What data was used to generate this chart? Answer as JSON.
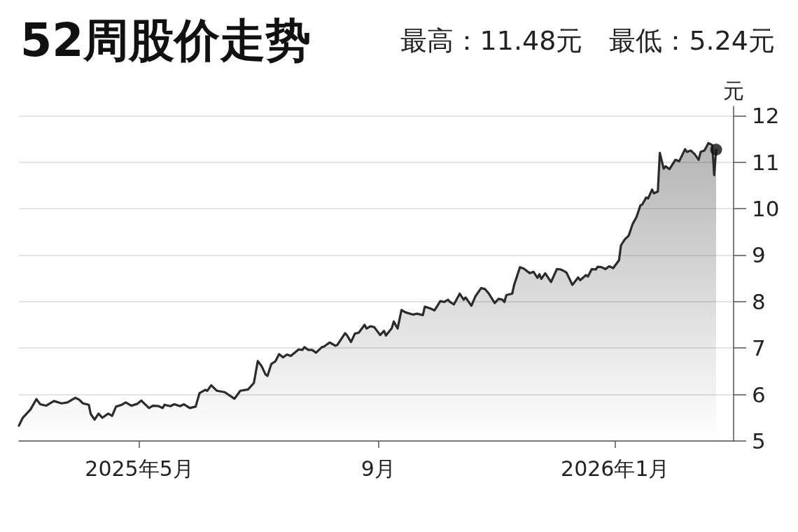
{
  "chart_data": {
    "type": "area",
    "title": "52周股价走势",
    "subtitle": "最高：11.48元　最低：5.24元",
    "ylabel": "元",
    "x": [
      "2025-02-28",
      "2025-03-02",
      "2025-03-06",
      "2025-03-09",
      "2025-03-11",
      "2025-03-14",
      "2025-03-18",
      "2025-03-22",
      "2025-03-25",
      "2025-03-29",
      "2025-03-31",
      "2025-04-02",
      "2025-04-05",
      "2025-04-06",
      "2025-04-08",
      "2025-04-10",
      "2025-04-12",
      "2025-04-15",
      "2025-04-17",
      "2025-04-19",
      "2025-04-22",
      "2025-04-24",
      "2025-04-27",
      "2025-04-30",
      "2025-05-02",
      "2025-05-04",
      "2025-05-06",
      "2025-05-08",
      "2025-05-11",
      "2025-05-13",
      "2025-05-14",
      "2025-05-17",
      "2025-05-19",
      "2025-05-22",
      "2025-05-24",
      "2025-05-27",
      "2025-05-30",
      "2025-06-01",
      "2025-06-04",
      "2025-06-05",
      "2025-06-07",
      "2025-06-10",
      "2025-06-14",
      "2025-06-19",
      "2025-06-22",
      "2025-06-26",
      "2025-06-29",
      "2025-07-01",
      "2025-07-03",
      "2025-07-05",
      "2025-07-06",
      "2025-07-08",
      "2025-07-10",
      "2025-07-12",
      "2025-07-14",
      "2025-07-16",
      "2025-07-18",
      "2025-07-22",
      "2025-07-24",
      "2025-07-25",
      "2025-07-27",
      "2025-07-29",
      "2025-07-31",
      "2025-08-03",
      "2025-08-04",
      "2025-08-07",
      "2025-08-10",
      "2025-08-11",
      "2025-08-15",
      "2025-08-16",
      "2025-08-18",
      "2025-08-20",
      "2025-08-22",
      "2025-08-25",
      "2025-08-26",
      "2025-08-28",
      "2025-08-30",
      "2025-09-02",
      "2025-09-04",
      "2025-09-05",
      "2025-09-08",
      "2025-09-09",
      "2025-09-11",
      "2025-09-13",
      "2025-09-15",
      "2025-09-19",
      "2025-09-21",
      "2025-09-24",
      "2025-09-25",
      "2025-09-28",
      "2025-09-30",
      "2025-10-03",
      "2025-10-05",
      "2025-10-07",
      "2025-10-08",
      "2025-10-10",
      "2025-10-13",
      "2025-10-15",
      "2025-10-16",
      "2025-10-19",
      "2025-10-21",
      "2025-10-24",
      "2025-10-26",
      "2025-10-28",
      "2025-10-31",
      "2025-11-02",
      "2025-11-04",
      "2025-11-05",
      "2025-11-06",
      "2025-11-09",
      "2025-11-10",
      "2025-11-13",
      "2025-11-15",
      "2025-11-18",
      "2025-11-20",
      "2025-11-22",
      "2025-11-23",
      "2025-11-24",
      "2025-11-26",
      "2025-11-29",
      "2025-12-02",
      "2025-12-04",
      "2025-12-06",
      "2025-12-07",
      "2025-12-10",
      "2025-12-13",
      "2025-12-14",
      "2025-12-17",
      "2025-12-18",
      "2025-12-20",
      "2025-12-22",
      "2025-12-23",
      "2025-12-25",
      "2025-12-27",
      "2025-12-29",
      "2025-12-31",
      "2026-01-03",
      "2026-01-04",
      "2026-01-06",
      "2026-01-08",
      "2026-01-10",
      "2026-01-12",
      "2026-01-14",
      "2026-01-15",
      "2026-01-17",
      "2026-01-18",
      "2026-01-20",
      "2026-01-21",
      "2026-01-23",
      "2026-01-24",
      "2026-01-26",
      "2026-01-27",
      "2026-01-29",
      "2026-02-01",
      "2026-02-03",
      "2026-02-06",
      "2026-02-07",
      "2026-02-09",
      "2026-02-11",
      "2026-02-13",
      "2026-02-14",
      "2026-02-16",
      "2026-02-18",
      "2026-02-20",
      "2026-02-21",
      "2026-02-22"
    ],
    "series": [
      {
        "color": "#2b2b2b",
        "values": [
          5.33,
          5.5,
          5.68,
          5.9,
          5.79,
          5.76,
          5.86,
          5.81,
          5.83,
          5.93,
          5.89,
          5.81,
          5.78,
          5.58,
          5.46,
          5.59,
          5.5,
          5.59,
          5.54,
          5.74,
          5.78,
          5.83,
          5.76,
          5.8,
          5.87,
          5.79,
          5.71,
          5.76,
          5.75,
          5.71,
          5.78,
          5.75,
          5.79,
          5.75,
          5.79,
          5.71,
          5.74,
          6.03,
          6.1,
          6.08,
          6.2,
          6.08,
          6.05,
          5.91,
          6.08,
          6.11,
          6.25,
          6.72,
          6.61,
          6.43,
          6.4,
          6.66,
          6.71,
          6.87,
          6.8,
          6.86,
          6.83,
          6.97,
          6.96,
          7.02,
          6.96,
          6.96,
          6.9,
          7.02,
          7.03,
          7.12,
          7.05,
          7.07,
          7.32,
          7.27,
          7.13,
          7.31,
          7.33,
          7.5,
          7.42,
          7.47,
          7.45,
          7.28,
          7.37,
          7.27,
          7.43,
          7.57,
          7.42,
          7.82,
          7.77,
          7.72,
          7.74,
          7.71,
          7.89,
          7.85,
          7.81,
          8.01,
          7.99,
          8.04,
          7.99,
          7.94,
          8.17,
          8.04,
          8.09,
          7.91,
          8.11,
          8.29,
          8.27,
          8.17,
          7.97,
          8.06,
          8.04,
          7.99,
          8.14,
          8.17,
          8.36,
          8.74,
          8.71,
          8.61,
          8.64,
          8.51,
          8.59,
          8.49,
          8.61,
          8.42,
          8.7,
          8.69,
          8.65,
          8.62,
          8.36,
          8.52,
          8.46,
          8.57,
          8.54,
          8.7,
          8.69,
          8.75,
          8.74,
          8.7,
          8.76,
          8.72,
          8.89,
          9.21,
          9.34,
          9.42,
          9.67,
          9.82,
          10.07,
          10.09,
          10.24,
          10.22,
          10.41,
          10.33,
          10.37,
          11.2,
          10.86,
          10.91,
          10.85,
          11.05,
          11.02,
          11.28,
          11.22,
          11.25,
          11.17,
          11.05,
          11.22,
          11.25,
          11.41,
          11.37,
          10.72,
          11.27
        ]
      },
      {
        "type": "scatter",
        "color": "#111111",
        "marker": "circle",
        "x": [
          "2026-02-22"
        ],
        "values": [
          11.27
        ]
      }
    ],
    "xlim": [
      "2025-02-28",
      "2026-03-03"
    ],
    "xticks": [
      {
        "value": "2025-05-01",
        "label": "2025年5月"
      },
      {
        "value": "2025-09-01",
        "label": "9月"
      },
      {
        "value": "2026-01-01",
        "label": "2026年1月"
      }
    ],
    "ylim": [
      5,
      12.2
    ],
    "yticks": [
      5,
      6,
      7,
      8,
      9,
      10,
      11,
      12
    ],
    "grid": "y"
  }
}
